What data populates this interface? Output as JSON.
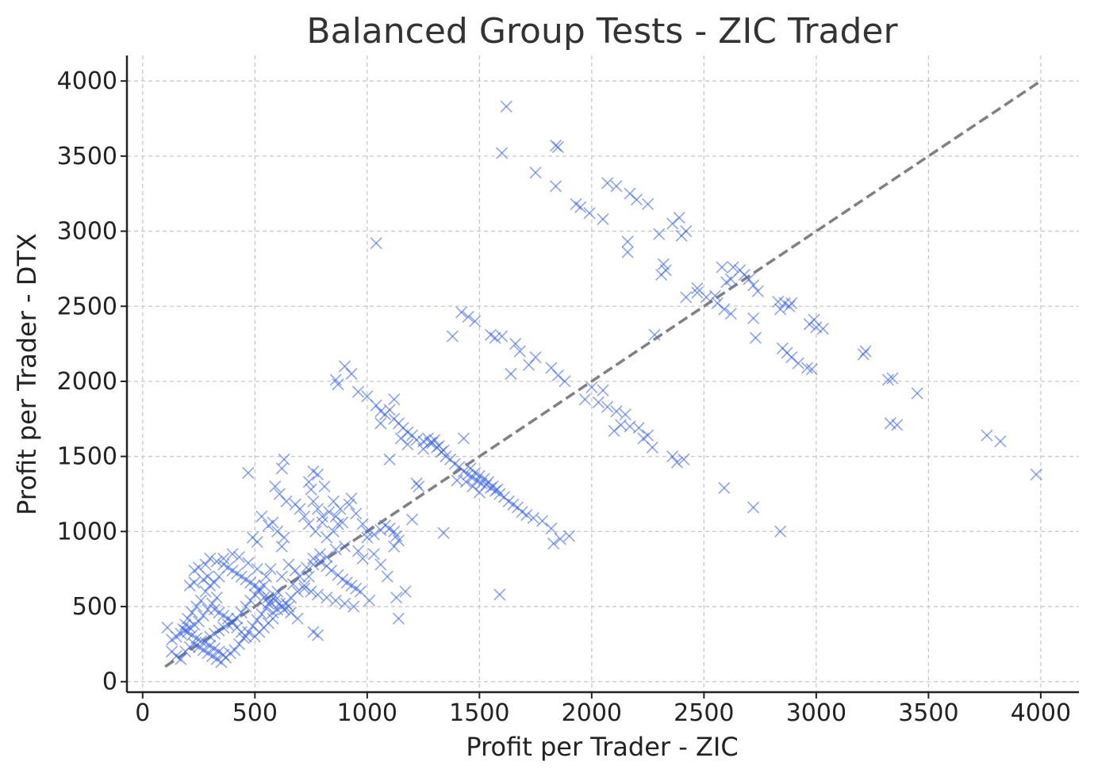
{
  "chart_data": {
    "type": "scatter",
    "title": "Balanced Group Tests - ZIC Trader",
    "xlabel": "Profit per Trader - ZIC",
    "ylabel": "Profit per Trader - DTX",
    "xlim": [
      -70,
      4170
    ],
    "ylim": [
      -70,
      4170
    ],
    "xticks": [
      0,
      500,
      1000,
      1500,
      2000,
      2500,
      3000,
      3500,
      4000
    ],
    "yticks": [
      0,
      500,
      1000,
      1500,
      2000,
      2500,
      3000,
      3500,
      4000
    ],
    "grid": true,
    "marker": "x",
    "color": "#4169e1",
    "reference_line": {
      "x": [
        100,
        4000
      ],
      "y": [
        100,
        4000
      ],
      "color": "#808080",
      "style": "dashed"
    },
    "points": [
      [
        1620,
        3830
      ],
      [
        1840,
        3570
      ],
      [
        1850,
        3560
      ],
      [
        1600,
        3520
      ],
      [
        1750,
        3390
      ],
      [
        1840,
        3300
      ],
      [
        2070,
        3320
      ],
      [
        2110,
        3300
      ],
      [
        1930,
        3180
      ],
      [
        1950,
        3160
      ],
      [
        1990,
        3120
      ],
      [
        2050,
        3080
      ],
      [
        2170,
        3250
      ],
      [
        2200,
        3210
      ],
      [
        2250,
        3180
      ],
      [
        2160,
        2930
      ],
      [
        2160,
        2860
      ],
      [
        2390,
        3090
      ],
      [
        2360,
        3050
      ],
      [
        2420,
        3000
      ],
      [
        2400,
        2970
      ],
      [
        2300,
        2980
      ],
      [
        2320,
        2780
      ],
      [
        2330,
        2740
      ],
      [
        2310,
        2710
      ],
      [
        1040,
        2920
      ],
      [
        2580,
        2760
      ],
      [
        2630,
        2760
      ],
      [
        2660,
        2740
      ],
      [
        2680,
        2710
      ],
      [
        2700,
        2680
      ],
      [
        2720,
        2640
      ],
      [
        2740,
        2600
      ],
      [
        2620,
        2680
      ],
      [
        2550,
        2570
      ],
      [
        2510,
        2560
      ],
      [
        2470,
        2620
      ],
      [
        2560,
        2520
      ],
      [
        2590,
        2480
      ],
      [
        2620,
        2450
      ],
      [
        2720,
        2420
      ],
      [
        2730,
        2290
      ],
      [
        2830,
        2530
      ],
      [
        2860,
        2520
      ],
      [
        2890,
        2520
      ],
      [
        2880,
        2500
      ],
      [
        2840,
        2480
      ],
      [
        2990,
        2410
      ],
      [
        2970,
        2380
      ],
      [
        3000,
        2360
      ],
      [
        3030,
        2350
      ],
      [
        2850,
        2220
      ],
      [
        2870,
        2190
      ],
      [
        2890,
        2160
      ],
      [
        2920,
        2120
      ],
      [
        2960,
        2090
      ],
      [
        2980,
        2080
      ],
      [
        3210,
        2180
      ],
      [
        3220,
        2200
      ],
      [
        3320,
        2010
      ],
      [
        3340,
        2020
      ],
      [
        3450,
        1920
      ],
      [
        3330,
        1720
      ],
      [
        3360,
        1710
      ],
      [
        3760,
        1640
      ],
      [
        3820,
        1600
      ],
      [
        3980,
        1380
      ],
      [
        2590,
        1290
      ],
      [
        2720,
        1160
      ],
      [
        2840,
        1000
      ],
      [
        1420,
        2460
      ],
      [
        1450,
        2430
      ],
      [
        1480,
        2400
      ],
      [
        1380,
        2300
      ],
      [
        1550,
        2310
      ],
      [
        1570,
        2290
      ],
      [
        1600,
        2300
      ],
      [
        1660,
        2250
      ],
      [
        1680,
        2200
      ],
      [
        1640,
        2050
      ],
      [
        1720,
        2110
      ],
      [
        1750,
        2160
      ],
      [
        1820,
        2090
      ],
      [
        1850,
        2040
      ],
      [
        1880,
        2000
      ],
      [
        2000,
        1960
      ],
      [
        2050,
        1940
      ],
      [
        1970,
        1880
      ],
      [
        2030,
        1860
      ],
      [
        2070,
        1830
      ],
      [
        2110,
        1800
      ],
      [
        2150,
        1780
      ],
      [
        2130,
        1710
      ],
      [
        2170,
        1700
      ],
      [
        2100,
        1670
      ],
      [
        2210,
        1690
      ],
      [
        2250,
        1640
      ],
      [
        2230,
        1620
      ],
      [
        2270,
        1560
      ],
      [
        2360,
        1500
      ],
      [
        2380,
        1460
      ],
      [
        2410,
        1480
      ],
      [
        2280,
        2310
      ],
      [
        2420,
        2560
      ],
      [
        2470,
        2590
      ],
      [
        2600,
        2660
      ],
      [
        860,
        2010
      ],
      [
        900,
        2100
      ],
      [
        930,
        2050
      ],
      [
        870,
        1980
      ],
      [
        960,
        1930
      ],
      [
        1000,
        1900
      ],
      [
        1040,
        1840
      ],
      [
        1060,
        1800
      ],
      [
        1080,
        1780
      ],
      [
        1100,
        1810
      ],
      [
        1120,
        1750
      ],
      [
        1140,
        1720
      ],
      [
        1160,
        1690
      ],
      [
        1180,
        1660
      ],
      [
        1200,
        1640
      ],
      [
        1220,
        1610
      ],
      [
        1250,
        1600
      ],
      [
        1270,
        1620
      ],
      [
        1290,
        1590
      ],
      [
        1310,
        1560
      ],
      [
        1330,
        1530
      ],
      [
        1350,
        1500
      ],
      [
        1370,
        1480
      ],
      [
        1390,
        1450
      ],
      [
        1410,
        1430
      ],
      [
        1430,
        1400
      ],
      [
        1450,
        1380
      ],
      [
        1470,
        1360
      ],
      [
        1490,
        1340
      ],
      [
        1510,
        1320
      ],
      [
        1530,
        1310
      ],
      [
        1550,
        1290
      ],
      [
        1570,
        1270
      ],
      [
        1590,
        1250
      ],
      [
        1610,
        1230
      ],
      [
        1630,
        1200
      ],
      [
        1650,
        1180
      ],
      [
        1670,
        1160
      ],
      [
        1690,
        1130
      ],
      [
        1710,
        1110
      ],
      [
        1740,
        1090
      ],
      [
        1780,
        1070
      ],
      [
        1820,
        1020
      ],
      [
        1830,
        920
      ],
      [
        1860,
        950
      ],
      [
        1900,
        970
      ],
      [
        1340,
        990
      ],
      [
        1430,
        1620
      ],
      [
        1460,
        1420
      ],
      [
        1480,
        1390
      ],
      [
        1500,
        1370
      ],
      [
        1520,
        1350
      ],
      [
        1540,
        1330
      ],
      [
        1560,
        1300
      ],
      [
        1580,
        1280
      ],
      [
        1500,
        1260
      ],
      [
        1470,
        1300
      ],
      [
        1440,
        1330
      ],
      [
        1400,
        1340
      ],
      [
        1230,
        1300
      ],
      [
        1220,
        1320
      ],
      [
        1200,
        1080
      ],
      [
        1100,
        1480
      ],
      [
        1060,
        1720
      ],
      [
        1120,
        1880
      ],
      [
        1150,
        1620
      ],
      [
        1180,
        1580
      ],
      [
        1250,
        1550
      ],
      [
        1280,
        1590
      ],
      [
        1300,
        1610
      ],
      [
        1320,
        1570
      ],
      [
        1340,
        1540
      ],
      [
        1120,
        1000
      ],
      [
        1130,
        970
      ],
      [
        1140,
        940
      ],
      [
        1100,
        1020
      ],
      [
        1120,
        900
      ],
      [
        1130,
        560
      ],
      [
        1140,
        420
      ],
      [
        1170,
        600
      ],
      [
        1060,
        780
      ],
      [
        1090,
        700
      ],
      [
        1030,
        850
      ],
      [
        1000,
        1000
      ],
      [
        980,
        1050
      ],
      [
        950,
        1120
      ],
      [
        920,
        1180
      ],
      [
        930,
        1220
      ],
      [
        900,
        900
      ],
      [
        870,
        1050
      ],
      [
        850,
        1000
      ],
      [
        820,
        960
      ],
      [
        800,
        1100
      ],
      [
        780,
        1150
      ],
      [
        760,
        1200
      ],
      [
        750,
        1280
      ],
      [
        740,
        1330
      ],
      [
        760,
        1400
      ],
      [
        780,
        1380
      ],
      [
        810,
        1300
      ],
      [
        850,
        1200
      ],
      [
        880,
        1150
      ],
      [
        860,
        880
      ],
      [
        820,
        830
      ],
      [
        790,
        800
      ],
      [
        760,
        780
      ],
      [
        730,
        760
      ],
      [
        700,
        700
      ],
      [
        680,
        740
      ],
      [
        650,
        780
      ],
      [
        620,
        900
      ],
      [
        630,
        960
      ],
      [
        600,
        1000
      ],
      [
        580,
        1060
      ],
      [
        560,
        1040
      ],
      [
        530,
        1100
      ],
      [
        510,
        930
      ],
      [
        490,
        960
      ],
      [
        640,
        1200
      ],
      [
        610,
        1250
      ],
      [
        590,
        1300
      ],
      [
        620,
        1420
      ],
      [
        630,
        1480
      ],
      [
        470,
        1390
      ],
      [
        680,
        1180
      ],
      [
        700,
        1150
      ],
      [
        720,
        1100
      ],
      [
        740,
        1050
      ],
      [
        770,
        1000
      ],
      [
        800,
        1060
      ],
      [
        830,
        1130
      ],
      [
        860,
        1100
      ],
      [
        890,
        1060
      ],
      [
        820,
        770
      ],
      [
        840,
        740
      ],
      [
        870,
        710
      ],
      [
        890,
        680
      ],
      [
        910,
        660
      ],
      [
        930,
        640
      ],
      [
        950,
        620
      ],
      [
        970,
        600
      ],
      [
        1010,
        540
      ],
      [
        980,
        820
      ],
      [
        960,
        870
      ],
      [
        790,
        850
      ],
      [
        760,
        820
      ],
      [
        740,
        700
      ],
      [
        720,
        640
      ],
      [
        690,
        600
      ],
      [
        660,
        560
      ],
      [
        640,
        520
      ],
      [
        620,
        500
      ],
      [
        600,
        480
      ],
      [
        580,
        460
      ],
      [
        560,
        520
      ],
      [
        540,
        560
      ],
      [
        520,
        600
      ],
      [
        500,
        640
      ],
      [
        480,
        660
      ],
      [
        460,
        680
      ],
      [
        440,
        700
      ],
      [
        420,
        720
      ],
      [
        400,
        740
      ],
      [
        380,
        760
      ],
      [
        360,
        780
      ],
      [
        340,
        700
      ],
      [
        320,
        660
      ],
      [
        300,
        640
      ],
      [
        280,
        600
      ],
      [
        260,
        540
      ],
      [
        240,
        500
      ],
      [
        220,
        460
      ],
      [
        200,
        420
      ],
      [
        190,
        380
      ],
      [
        180,
        350
      ],
      [
        200,
        330
      ],
      [
        220,
        310
      ],
      [
        240,
        290
      ],
      [
        260,
        270
      ],
      [
        280,
        260
      ],
      [
        300,
        240
      ],
      [
        320,
        220
      ],
      [
        340,
        200
      ],
      [
        360,
        180
      ],
      [
        300,
        300
      ],
      [
        320,
        320
      ],
      [
        340,
        340
      ],
      [
        360,
        360
      ],
      [
        380,
        380
      ],
      [
        400,
        400
      ],
      [
        420,
        420
      ],
      [
        440,
        460
      ],
      [
        460,
        500
      ],
      [
        480,
        540
      ],
      [
        500,
        580
      ],
      [
        520,
        620
      ],
      [
        540,
        640
      ],
      [
        560,
        560
      ],
      [
        590,
        540
      ],
      [
        610,
        520
      ],
      [
        630,
        480
      ],
      [
        660,
        460
      ],
      [
        690,
        420
      ],
      [
        650,
        500
      ],
      [
        600,
        600
      ],
      [
        550,
        700
      ],
      [
        510,
        750
      ],
      [
        470,
        790
      ],
      [
        430,
        830
      ],
      [
        400,
        850
      ],
      [
        360,
        820
      ],
      [
        330,
        800
      ],
      [
        300,
        820
      ],
      [
        280,
        780
      ],
      [
        250,
        760
      ],
      [
        230,
        740
      ],
      [
        290,
        700
      ],
      [
        270,
        680
      ],
      [
        230,
        660
      ],
      [
        210,
        640
      ],
      [
        330,
        560
      ],
      [
        310,
        520
      ],
      [
        290,
        480
      ],
      [
        270,
        440
      ],
      [
        250,
        400
      ],
      [
        230,
        380
      ],
      [
        210,
        360
      ],
      [
        190,
        340
      ],
      [
        170,
        320
      ],
      [
        150,
        300
      ],
      [
        130,
        280
      ],
      [
        110,
        360
      ],
      [
        130,
        200
      ],
      [
        150,
        170
      ],
      [
        170,
        150
      ],
      [
        190,
        200
      ],
      [
        210,
        230
      ],
      [
        230,
        250
      ],
      [
        250,
        230
      ],
      [
        270,
        210
      ],
      [
        290,
        190
      ],
      [
        310,
        170
      ],
      [
        330,
        150
      ],
      [
        350,
        130
      ],
      [
        370,
        160
      ],
      [
        390,
        190
      ],
      [
        410,
        210
      ],
      [
        430,
        250
      ],
      [
        450,
        290
      ],
      [
        470,
        330
      ],
      [
        490,
        370
      ],
      [
        510,
        410
      ],
      [
        530,
        450
      ],
      [
        550,
        490
      ],
      [
        570,
        530
      ],
      [
        590,
        570
      ],
      [
        460,
        300
      ],
      [
        440,
        330
      ],
      [
        420,
        360
      ],
      [
        400,
        390
      ],
      [
        380,
        420
      ],
      [
        360,
        440
      ],
      [
        340,
        460
      ],
      [
        320,
        480
      ],
      [
        500,
        300
      ],
      [
        520,
        330
      ],
      [
        540,
        360
      ],
      [
        560,
        390
      ],
      [
        580,
        420
      ],
      [
        760,
        330
      ],
      [
        780,
        310
      ],
      [
        1590,
        580
      ],
      [
        570,
        750
      ],
      [
        620,
        700
      ],
      [
        670,
        650
      ],
      [
        720,
        620
      ],
      [
        750,
        600
      ],
      [
        780,
        580
      ],
      [
        820,
        560
      ],
      [
        860,
        540
      ],
      [
        900,
        520
      ],
      [
        940,
        500
      ],
      [
        1000,
        960
      ],
      [
        1030,
        980
      ],
      [
        1060,
        1010
      ],
      [
        1080,
        1040
      ]
    ]
  }
}
